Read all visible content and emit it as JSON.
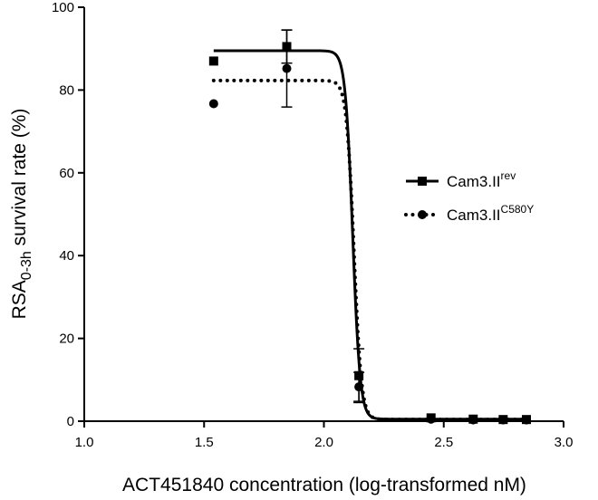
{
  "chart_data": {
    "type": "scatter",
    "title": "",
    "xlabel": "ACT451840  concentration (log-transformed nM)",
    "ylabel": {
      "main": "RSA",
      "sub": "0-3h",
      "rest": " survival rate (%)"
    },
    "xlim": [
      1.0,
      3.0
    ],
    "ylim": [
      0,
      100
    ],
    "xticks": [
      1.0,
      1.5,
      2.0,
      2.5,
      3.0
    ],
    "xtick_labels": [
      "1.0",
      "1.5",
      "2.0",
      "2.5",
      "3.0"
    ],
    "yticks": [
      0,
      20,
      40,
      60,
      80,
      100
    ],
    "ytick_labels": [
      "0",
      "20",
      "40",
      "60",
      "80",
      "100"
    ],
    "grid": false,
    "legend_position": "right",
    "series": [
      {
        "name": {
          "base": "Cam3.II",
          "sup": "rev"
        },
        "marker": "square",
        "line_style": "solid",
        "color": "#000000",
        "x": [
          1.54,
          1.845,
          2.146,
          2.447,
          2.623,
          2.748,
          2.845
        ],
        "y": [
          87.0,
          90.5,
          11.0,
          0.8,
          0.5,
          0.4,
          0.4
        ],
        "error": [
          0,
          4,
          6.5,
          0,
          0,
          0,
          0
        ],
        "fit": {
          "top": 89.5,
          "bottom": 0.5,
          "ec50_log": 2.12,
          "hill": 28
        }
      },
      {
        "name": {
          "base": "Cam3.II",
          "sup": "C580Y"
        },
        "marker": "circle",
        "line_style": "dotted",
        "color": "#000000",
        "x": [
          1.54,
          1.845,
          2.146,
          2.447,
          2.623,
          2.748,
          2.845
        ],
        "y": [
          76.7,
          85.2,
          8.3,
          0.5,
          0.3,
          0.3,
          0.3
        ],
        "error": [
          0,
          9.3,
          3.5,
          0,
          0,
          0,
          0
        ],
        "fit": {
          "top": 82.3,
          "bottom": 0.4,
          "ec50_log": 2.125,
          "hill": 28
        }
      }
    ]
  }
}
